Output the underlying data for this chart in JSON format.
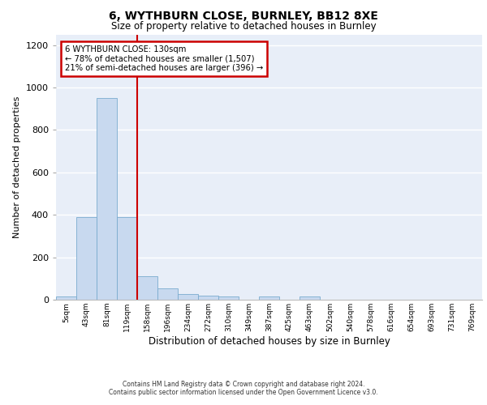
{
  "title1": "6, WYTHBURN CLOSE, BURNLEY, BB12 8XE",
  "title2": "Size of property relative to detached houses in Burnley",
  "xlabel": "Distribution of detached houses by size in Burnley",
  "ylabel": "Number of detached properties",
  "bins": [
    "5sqm",
    "43sqm",
    "81sqm",
    "119sqm",
    "158sqm",
    "196sqm",
    "234sqm",
    "272sqm",
    "310sqm",
    "349sqm",
    "387sqm",
    "425sqm",
    "463sqm",
    "502sqm",
    "540sqm",
    "578sqm",
    "616sqm",
    "654sqm",
    "693sqm",
    "731sqm",
    "769sqm"
  ],
  "values": [
    15,
    390,
    950,
    390,
    110,
    55,
    25,
    20,
    15,
    0,
    15,
    0,
    15,
    0,
    0,
    0,
    0,
    0,
    0,
    0,
    0
  ],
  "bar_color": "#c8d9ef",
  "bar_edge_color": "#7aabcf",
  "background_color": "#e8eef8",
  "grid_color": "#ffffff",
  "vline_color": "#cc0000",
  "annotation_text": "6 WYTHBURN CLOSE: 130sqm\n← 78% of detached houses are smaller (1,507)\n21% of semi-detached houses are larger (396) →",
  "annotation_box_color": "#ffffff",
  "annotation_box_edge": "#cc0000",
  "ylim": [
    0,
    1250
  ],
  "yticks": [
    0,
    200,
    400,
    600,
    800,
    1000,
    1200
  ],
  "footer1": "Contains HM Land Registry data © Crown copyright and database right 2024.",
  "footer2": "Contains public sector information licensed under the Open Government Licence v3.0."
}
